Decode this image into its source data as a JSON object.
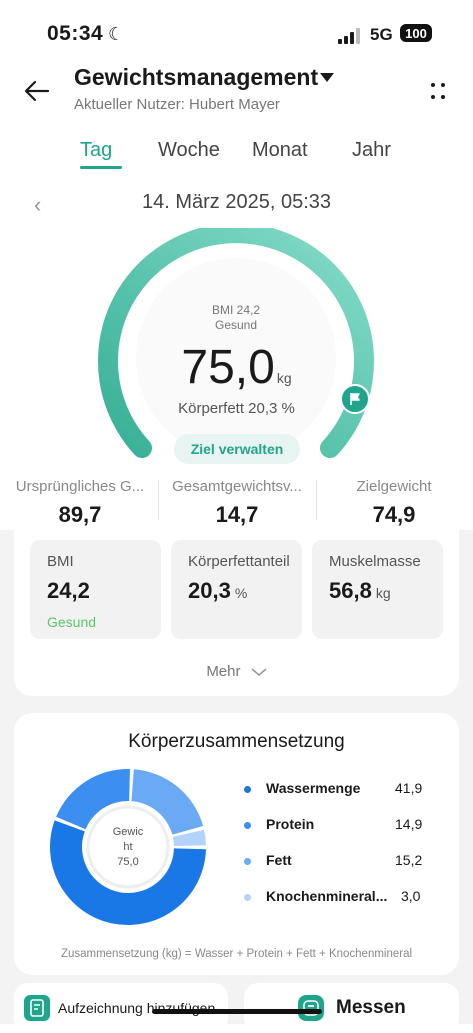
{
  "status": {
    "time": "05:34",
    "network": "5G",
    "battery": "100"
  },
  "header": {
    "title": "Gewichtsmanagement",
    "subtitle": "Aktueller Nutzer: Hubert Mayer"
  },
  "tabs": [
    {
      "label": "Tag",
      "active": true
    },
    {
      "label": "Woche",
      "active": false
    },
    {
      "label": "Monat",
      "active": false
    },
    {
      "label": "Jahr",
      "active": false
    }
  ],
  "date": "14. März 2025, 05:33",
  "gauge": {
    "bmi_text": "BMI 24,2",
    "bmi_status": "Gesund",
    "weight": "75,0",
    "unit": "kg",
    "body_fat_text": "Körperfett 20,3 %",
    "goal_button": "Ziel verwalten",
    "color_start": "#3bb59a",
    "color_end": "#7fd8c4"
  },
  "summary": [
    {
      "label": "Ursprüngliches G...",
      "value": "89,7"
    },
    {
      "label": "Gesamtgewichtsv...",
      "value": "14,7"
    },
    {
      "label": "Zielgewicht",
      "value": "74,9"
    }
  ],
  "metrics": [
    {
      "label": "BMI",
      "value": "24,2",
      "unit": "",
      "status": "Gesund"
    },
    {
      "label": "Körperfettanteil",
      "value": "20,3",
      "unit": "%",
      "status": ""
    },
    {
      "label": "Muskelmasse",
      "value": "56,8",
      "unit": "kg",
      "status": ""
    }
  ],
  "more_label": "Mehr",
  "composition": {
    "title": "Körperzusammensetzung",
    "center_lines": [
      "Gewic",
      "ht",
      "75,0"
    ],
    "items": [
      {
        "name": "Wassermenge",
        "value": "41,9",
        "color": "#1a78e6"
      },
      {
        "name": "Protein",
        "value": "14,9",
        "color": "#3c8ef0"
      },
      {
        "name": "Fett",
        "value": "15,2",
        "color": "#6aaaf4"
      },
      {
        "name": "Knochenmineral...",
        "value": "3,0",
        "color": "#b3d3fa"
      }
    ],
    "formula": "Zusammensetzung (kg) = Wasser + Protein + Fett + Knochenmineral"
  },
  "actions": {
    "add_record": "Aufzeichnung hinzufügen",
    "measure": "Messen"
  }
}
